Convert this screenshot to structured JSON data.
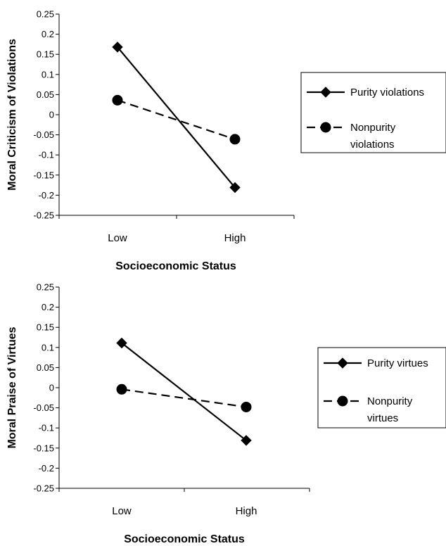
{
  "chart_data": [
    {
      "type": "line",
      "categories": [
        "Low",
        "High"
      ],
      "xlabel": "Socioeconomic Status",
      "ylabel": "Moral Criticism of Violations",
      "ylim": [
        -0.25,
        0.25
      ],
      "yticks": [
        "0.25",
        "0.2",
        "0.15",
        "0.1",
        "0.05",
        "0",
        "-0.05",
        "-0.1",
        "-0.15",
        "-0.2",
        "-0.25"
      ],
      "grid": false,
      "legend_position": "right",
      "series": [
        {
          "name": "Purity violations",
          "values": [
            0.168,
            -0.181
          ],
          "line": "solid",
          "marker": "diamond",
          "color": "#000000"
        },
        {
          "name": "Nonpurity violations",
          "name_lines": [
            "Nonpurity",
            "violations"
          ],
          "values": [
            0.036,
            -0.061
          ],
          "line": "dashed",
          "marker": "circle",
          "color": "#000000"
        }
      ]
    },
    {
      "type": "line",
      "categories": [
        "Low",
        "High"
      ],
      "xlabel": "Socioeconomic Status",
      "ylabel": "Moral Praise of Virtues",
      "ylim": [
        -0.25,
        0.25
      ],
      "yticks": [
        "0.25",
        "0.2",
        "0.15",
        "0.1",
        "0.05",
        "0",
        "-0.05",
        "-0.1",
        "-0.15",
        "-0.2",
        "-0.25"
      ],
      "grid": false,
      "legend_position": "right",
      "series": [
        {
          "name": "Purity virtues",
          "values": [
            0.111,
            -0.131
          ],
          "line": "solid",
          "marker": "diamond",
          "color": "#000000"
        },
        {
          "name": "Nonpurity virtues",
          "name_lines": [
            "Nonpurity",
            "virtues"
          ],
          "values": [
            -0.004,
            -0.048
          ],
          "line": "dashed",
          "marker": "circle",
          "color": "#000000"
        }
      ]
    }
  ]
}
